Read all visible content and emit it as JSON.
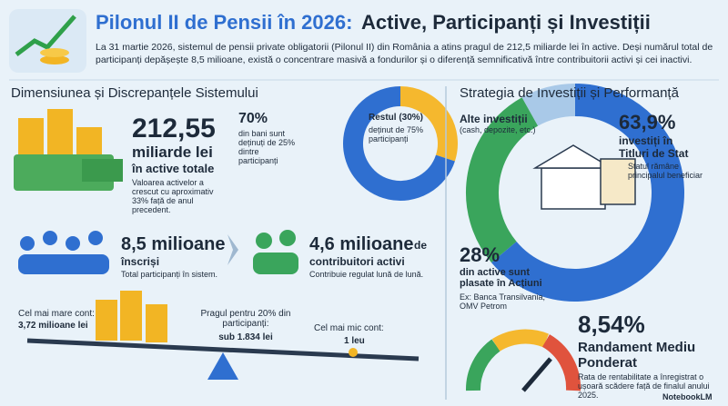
{
  "header": {
    "title_lead": "Pilonul II de Pensii în 2026:",
    "title_rest": "Active, Participanți și Investiții",
    "description": "La 31 martie 2026, sistemul de pensii private obligatorii (Pilonul II) din România a atins pragul de 212,5 miliarde lei în active. Deși numărul total de participanți depășește 8,5 milioane, există o concentrare masivă a fondurilor și o diferență semnificativă între contribuitorii activi și cei inactivi."
  },
  "left": {
    "heading": "Dimensiunea și Discrepanțele Sistemului",
    "assets": {
      "value": "212,55",
      "unit": "miliarde lei",
      "sub": "în active totale",
      "note": "Valoarea activelor a crescut cu aproximativ 33% față de anul precedent."
    },
    "concentration": {
      "values": [
        70,
        30
      ],
      "value_labels": [
        "70%",
        "Restul (30%)"
      ],
      "colors": [
        "#2f6fd0",
        "#f5b82e"
      ],
      "main_desc": "din bani sunt deținuți de 25% dintre participanți",
      "rest_desc": "deținut de 75% participanți"
    },
    "participants": {
      "value": "8,5 milioane",
      "sub": "înscriși",
      "note": "Total participanți în sistem."
    },
    "active": {
      "value": "4,6 milioane",
      "joiner": "de",
      "sub": "contribuitori activi",
      "note": "Contribuie regulat lună de lună."
    },
    "seesaw": {
      "max_label": "Cel mai mare cont:",
      "max_value": "3,72 milioane lei",
      "threshold_label": "Pragul pentru 20% din participanți:",
      "threshold_value": "sub 1.834 lei",
      "min_label": "Cel mai mic cont:",
      "min_value": "1 leu"
    }
  },
  "right": {
    "heading": "Strategia de Investiții și Performanță",
    "investments": {
      "values": [
        63.9,
        28,
        8.1
      ],
      "colors": [
        "#2f6fd0",
        "#3aa55c",
        "#a9c9e8"
      ],
      "gov_label": "63,9%",
      "gov_desc": "investiți în Titluri de Stat",
      "gov_note": "Statul rămâne principalul beneficiar",
      "eq_label": "28%",
      "eq_desc": "din active sunt plasate în Acțiuni",
      "eq_note": "Ex: Banca Transilvania, OMV Petrom",
      "other_label": "Alte investiții",
      "other_desc": "(cash, depozite, etc.)"
    },
    "performance": {
      "value": "8,54%",
      "label": "Randament Mediu Ponderat",
      "note": "Rata de rentabilitate a înregistrat o ușoară scădere față de finalul anului 2025."
    }
  },
  "footer": {
    "brand": "NotebookLM"
  }
}
